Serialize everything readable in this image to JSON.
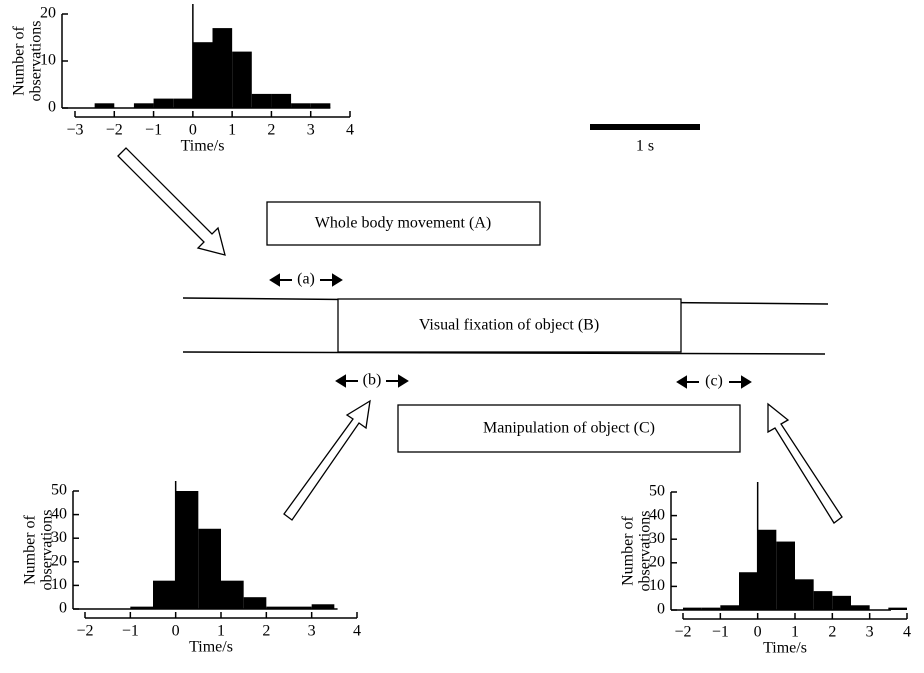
{
  "chart_data": [
    {
      "type": "histogram",
      "xlabel": "Time/s",
      "ylabel": [
        "Number of",
        "observations"
      ],
      "bins": [
        -3,
        -2.5,
        -2,
        -1.5,
        -1,
        -0.5,
        0,
        0.5,
        1,
        1.5,
        2,
        2.5,
        3,
        3.5
      ],
      "counts": [
        0,
        1,
        0,
        1,
        2,
        2,
        14,
        17,
        12,
        3,
        3,
        1,
        1
      ],
      "color": "#000000",
      "xlim": [
        -3,
        4
      ],
      "ylim": [
        0,
        20
      ],
      "xticks": [
        {
          "value": -3,
          "label": "−3"
        },
        {
          "value": -2,
          "label": "−2"
        },
        {
          "value": -1,
          "label": "−1"
        },
        0,
        1,
        2,
        3,
        4
      ],
      "yticks": [
        0,
        10,
        20
      ]
    },
    {
      "type": "histogram",
      "xlabel": "Time/s",
      "ylabel": [
        "Number of",
        "observations"
      ],
      "bins": [
        -2,
        -1.5,
        -1,
        -0.5,
        0,
        0.5,
        1,
        1.5,
        2,
        2.5,
        3,
        3.5
      ],
      "counts": [
        0,
        0,
        1,
        12,
        50,
        34,
        12,
        5,
        1,
        1,
        2
      ],
      "color": "#000000",
      "xlim": [
        -2,
        4
      ],
      "ylim": [
        0,
        50
      ],
      "xticks": [
        {
          "value": -2,
          "label": "−2"
        },
        {
          "value": -1,
          "label": "−1"
        },
        0,
        1,
        2,
        3,
        4
      ],
      "yticks": [
        0,
        10,
        20,
        30,
        40,
        50
      ]
    },
    {
      "type": "histogram",
      "xlabel": "Time/s",
      "ylabel": [
        "Number of",
        "observations"
      ],
      "bins": [
        -2,
        -1.5,
        -1,
        -0.5,
        0,
        0.5,
        1,
        1.5,
        2,
        2.5,
        3,
        3.5,
        4
      ],
      "counts": [
        1,
        1,
        2,
        16,
        34,
        29,
        13,
        8,
        6,
        2,
        0,
        1
      ],
      "color": "#000000",
      "xlim": [
        -2,
        4
      ],
      "ylim": [
        0,
        50
      ],
      "xticks": [
        {
          "value": -2,
          "label": "−2"
        },
        {
          "value": -1,
          "label": "−1"
        },
        0,
        1,
        2,
        3,
        4
      ],
      "yticks": [
        0,
        10,
        20,
        30,
        40,
        50
      ]
    }
  ],
  "labels": {
    "scale": "1 s",
    "box_a": "Whole body movement (A)",
    "interval_a": "(a)",
    "box_b": "Visual fixation of object (B)",
    "interval_b": "(b)",
    "interval_c": "(c)",
    "box_c": "Manipulation of object (C)"
  }
}
